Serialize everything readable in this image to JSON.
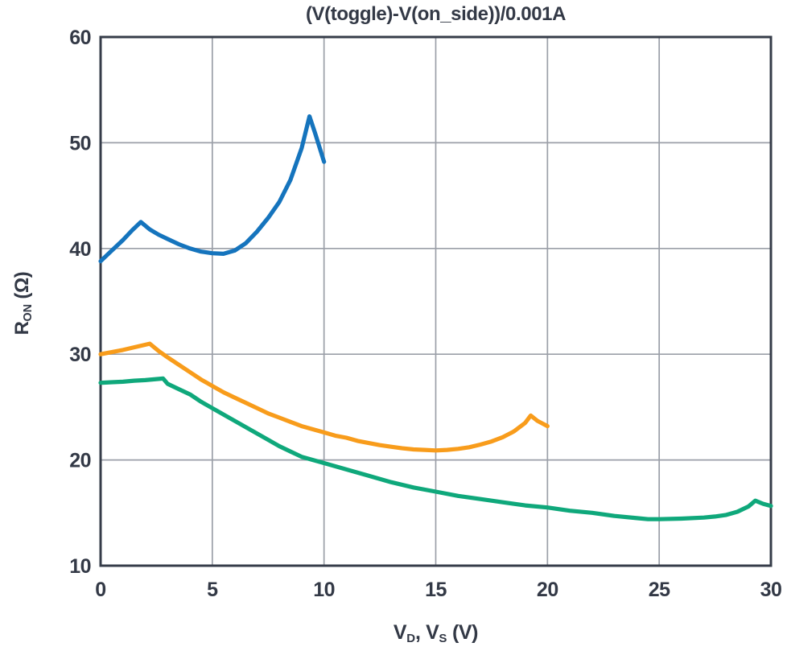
{
  "colors": {
    "text": "#333946",
    "grid": "#9B9FA8",
    "border": "#363C49",
    "blue": "#1574BD",
    "orange": "#F89C1B",
    "green": "#0FA87B",
    "background": "#FFFFFF"
  },
  "axes": {
    "x_label": {
      "p1": "V",
      "s1": "D",
      "p2": ", V",
      "s2": "S",
      "p3": " (V)"
    },
    "y_label": {
      "p1": "R",
      "s1": "ON",
      "p2": " (Ω)"
    }
  },
  "chart_data": {
    "type": "line",
    "title": "(V(toggle)-V(on_side))/0.001A",
    "xlabel": "VD, VS (V)",
    "ylabel": "RON (Ω)",
    "xlim": [
      0,
      30
    ],
    "ylim": [
      10,
      60
    ],
    "xticks": [
      0,
      5,
      10,
      15,
      20,
      25,
      30
    ],
    "yticks": [
      10,
      20,
      30,
      40,
      50,
      60
    ],
    "grid": true,
    "legend": "none",
    "series": [
      {
        "name": "blue",
        "color": "#1574BD",
        "points": [
          [
            0,
            38.8
          ],
          [
            0.5,
            39.8
          ],
          [
            1,
            40.8
          ],
          [
            1.4,
            41.7
          ],
          [
            1.8,
            42.5
          ],
          [
            2.2,
            41.8
          ],
          [
            2.6,
            41.3
          ],
          [
            3,
            40.9
          ],
          [
            3.5,
            40.4
          ],
          [
            4,
            40.0
          ],
          [
            4.5,
            39.7
          ],
          [
            5,
            39.55
          ],
          [
            5.5,
            39.5
          ],
          [
            6,
            39.8
          ],
          [
            6.5,
            40.5
          ],
          [
            7,
            41.6
          ],
          [
            7.5,
            42.9
          ],
          [
            8,
            44.4
          ],
          [
            8.5,
            46.5
          ],
          [
            9,
            49.5
          ],
          [
            9.35,
            52.5
          ],
          [
            9.6,
            50.9
          ],
          [
            10,
            48.2
          ]
        ]
      },
      {
        "name": "orange",
        "color": "#F89C1B",
        "points": [
          [
            0,
            30.0
          ],
          [
            0.5,
            30.2
          ],
          [
            1,
            30.4
          ],
          [
            1.6,
            30.7
          ],
          [
            2.2,
            31.0
          ],
          [
            2.6,
            30.3
          ],
          [
            3,
            29.7
          ],
          [
            3.5,
            29.0
          ],
          [
            4,
            28.3
          ],
          [
            4.5,
            27.6
          ],
          [
            5,
            27.0
          ],
          [
            5.5,
            26.4
          ],
          [
            6,
            25.9
          ],
          [
            6.5,
            25.4
          ],
          [
            7,
            24.9
          ],
          [
            7.5,
            24.4
          ],
          [
            8,
            24.0
          ],
          [
            8.5,
            23.6
          ],
          [
            9,
            23.2
          ],
          [
            9.5,
            22.9
          ],
          [
            10,
            22.6
          ],
          [
            10.5,
            22.3
          ],
          [
            11,
            22.1
          ],
          [
            11.5,
            21.8
          ],
          [
            12,
            21.6
          ],
          [
            12.5,
            21.4
          ],
          [
            13,
            21.25
          ],
          [
            13.5,
            21.1
          ],
          [
            14,
            21.0
          ],
          [
            14.5,
            20.95
          ],
          [
            15,
            20.9
          ],
          [
            15.5,
            20.95
          ],
          [
            16,
            21.05
          ],
          [
            16.5,
            21.2
          ],
          [
            17,
            21.45
          ],
          [
            17.5,
            21.75
          ],
          [
            18,
            22.15
          ],
          [
            18.5,
            22.7
          ],
          [
            19,
            23.5
          ],
          [
            19.25,
            24.2
          ],
          [
            19.55,
            23.7
          ],
          [
            20,
            23.2
          ]
        ]
      },
      {
        "name": "green",
        "color": "#0FA87B",
        "points": [
          [
            0,
            27.3
          ],
          [
            0.5,
            27.35
          ],
          [
            1,
            27.4
          ],
          [
            1.5,
            27.5
          ],
          [
            2,
            27.55
          ],
          [
            2.8,
            27.7
          ],
          [
            3,
            27.2
          ],
          [
            3.5,
            26.7
          ],
          [
            4,
            26.2
          ],
          [
            4.5,
            25.5
          ],
          [
            5,
            24.9
          ],
          [
            5.5,
            24.3
          ],
          [
            6,
            23.7
          ],
          [
            6.5,
            23.1
          ],
          [
            7,
            22.5
          ],
          [
            7.5,
            21.9
          ],
          [
            8,
            21.3
          ],
          [
            8.5,
            20.8
          ],
          [
            9,
            20.3
          ],
          [
            9.5,
            20.0
          ],
          [
            10,
            19.7
          ],
          [
            11,
            19.1
          ],
          [
            12,
            18.5
          ],
          [
            13,
            17.9
          ],
          [
            14,
            17.4
          ],
          [
            15,
            17.0
          ],
          [
            16,
            16.6
          ],
          [
            17,
            16.3
          ],
          [
            18,
            16.0
          ],
          [
            19,
            15.7
          ],
          [
            20,
            15.5
          ],
          [
            21,
            15.2
          ],
          [
            22,
            15.0
          ],
          [
            23,
            14.7
          ],
          [
            24,
            14.5
          ],
          [
            24.5,
            14.4
          ],
          [
            25,
            14.4
          ],
          [
            26,
            14.45
          ],
          [
            27,
            14.55
          ],
          [
            27.5,
            14.65
          ],
          [
            28,
            14.8
          ],
          [
            28.5,
            15.1
          ],
          [
            29,
            15.6
          ],
          [
            29.3,
            16.15
          ],
          [
            29.65,
            15.85
          ],
          [
            30,
            15.65
          ]
        ]
      }
    ]
  }
}
